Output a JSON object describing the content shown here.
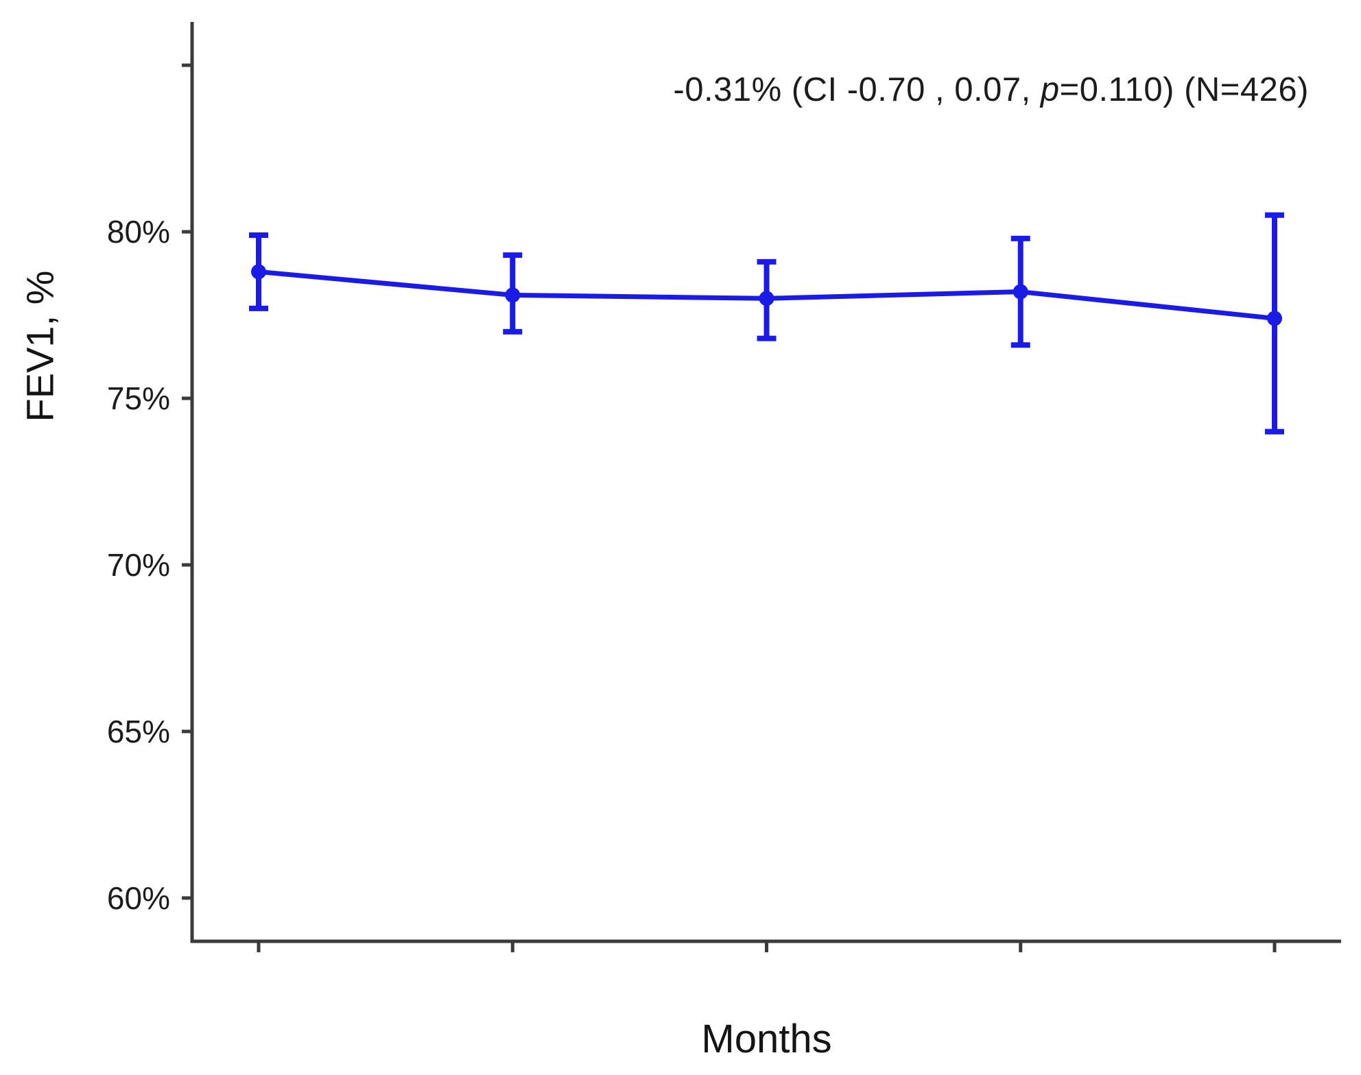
{
  "chart_data": {
    "type": "line",
    "annotation": {
      "prefix": "-0.31% (CI -0.70 , 0.07, ",
      "italic": "p",
      "suffix": "=0.110) (N=426)",
      "full_text": "-0.31% (CI -0.70 , 0.07, p=0.110) (N=426)"
    },
    "xlabel": "Months",
    "ylabel": "FEV1, %",
    "ylim": [
      58.7,
      86.3
    ],
    "y_ticks": [
      {
        "value": 60,
        "label": "60%"
      },
      {
        "value": 65,
        "label": "65%"
      },
      {
        "value": 70,
        "label": "70%"
      },
      {
        "value": 75,
        "label": "75%"
      },
      {
        "value": 80,
        "label": "80%"
      },
      {
        "value": 85,
        "label": ""
      }
    ],
    "x_tick_count": 5,
    "x_tick_labels": [
      "",
      "",
      "",
      "",
      ""
    ],
    "grid": false,
    "legend": "none",
    "series": [
      {
        "marker": "circle",
        "y": [
          78.8,
          78.1,
          78.0,
          78.2,
          77.4
        ],
        "ci_low": [
          77.7,
          77.0,
          76.8,
          76.6,
          74.0
        ],
        "ci_high": [
          79.9,
          79.3,
          79.1,
          79.8,
          80.5
        ]
      }
    ],
    "colors": {
      "series_line": "#1b1be8",
      "axis": "#3b3b3b",
      "text": "#1c1c1c"
    }
  }
}
